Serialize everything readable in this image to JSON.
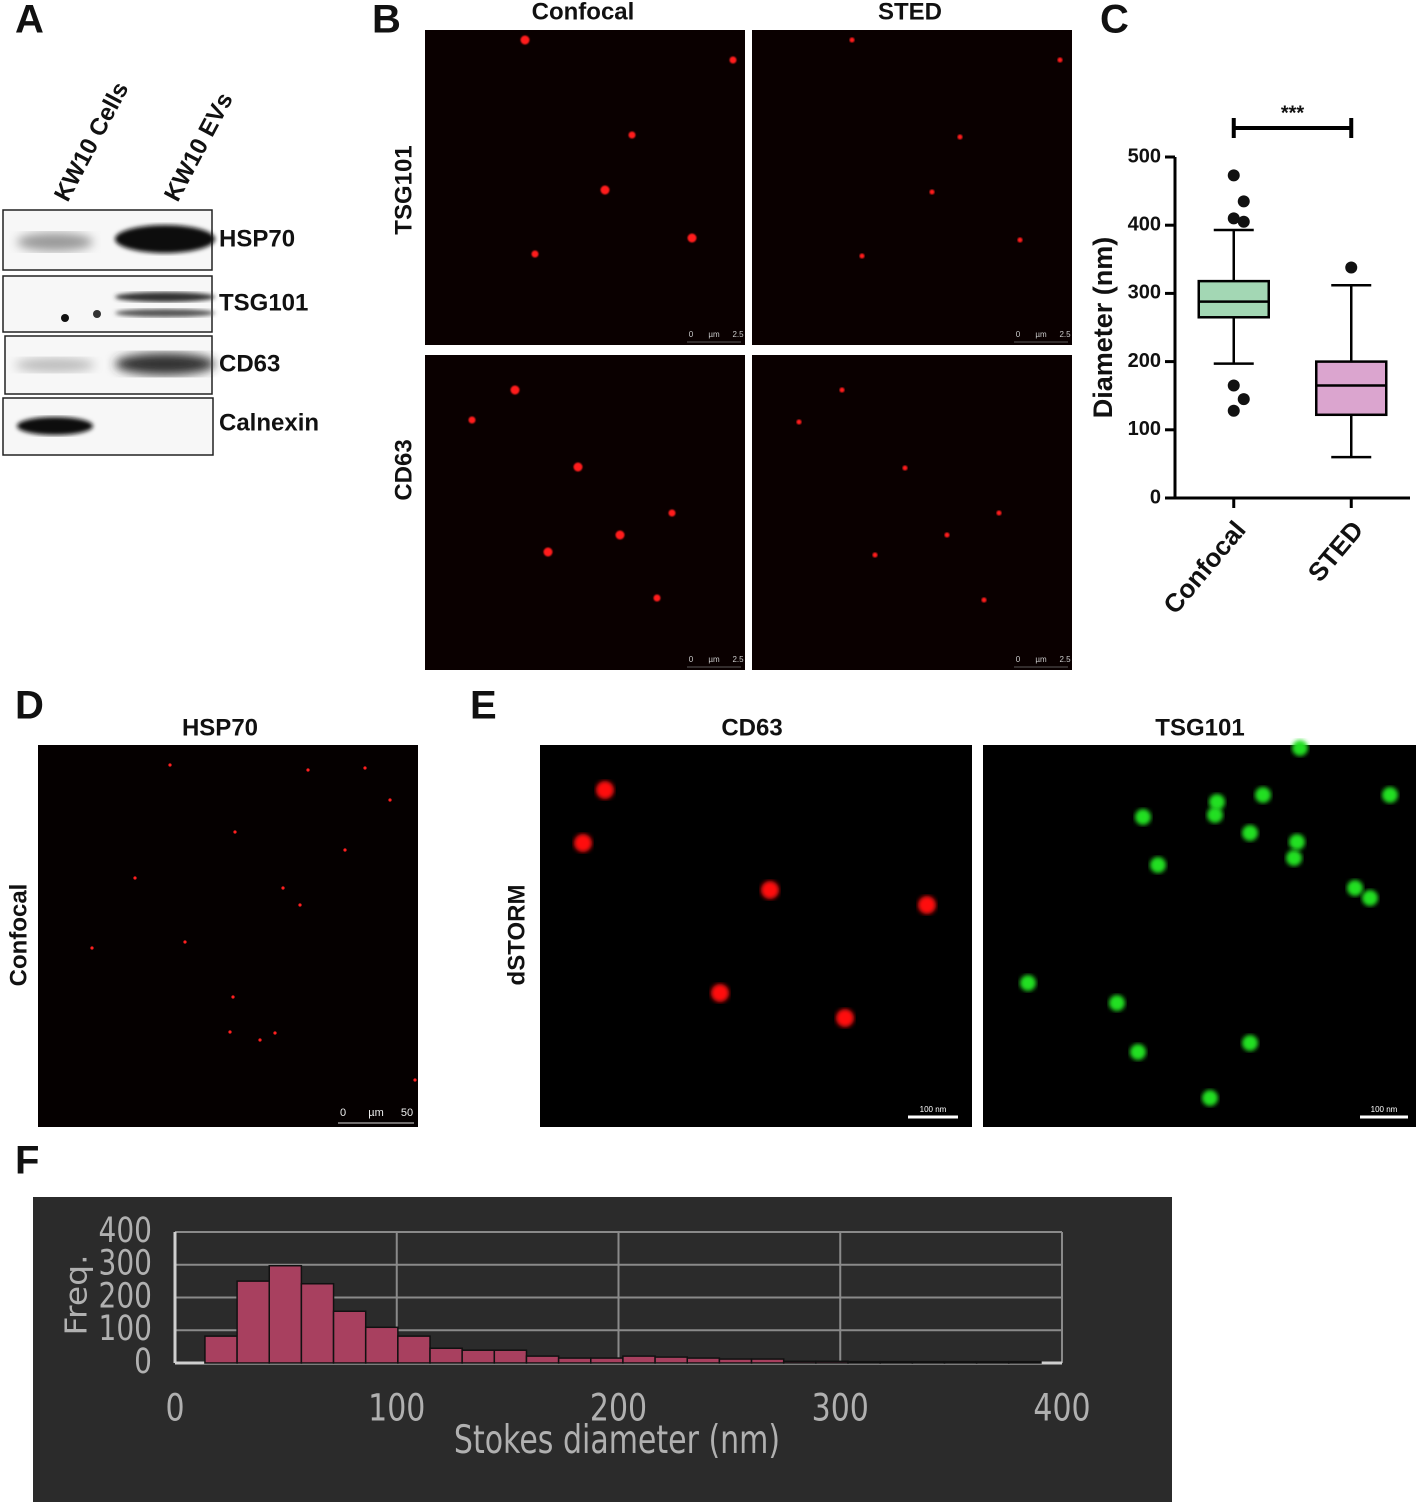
{
  "panels": {
    "a": {
      "label": "A",
      "columns": [
        "KW10 Cells",
        "KW10 EVs"
      ],
      "rows": [
        "HSP70",
        "TSG101",
        "CD63",
        "Calnexin"
      ]
    },
    "b": {
      "label": "B",
      "columns": [
        "Confocal",
        "STED"
      ],
      "rows": [
        "TSG101",
        "CD63"
      ],
      "scale_labels": [
        "0",
        "µm",
        "2.5"
      ]
    },
    "c": {
      "label": "C"
    },
    "d": {
      "label": "D",
      "title": "HSP70",
      "row": "Confocal",
      "scale_labels": [
        "0",
        "µm",
        "50"
      ]
    },
    "e": {
      "label": "E",
      "columns": [
        "CD63",
        "TSG101"
      ],
      "row": "dSTORM",
      "scale_label": "100 nm"
    },
    "f": {
      "label": "F"
    }
  },
  "chart_data": [
    {
      "type": "box",
      "ylabel": "Diameter (nm)",
      "categories": [
        "Confocal",
        "STED"
      ],
      "ylim": [
        0,
        500
      ],
      "yticks": [
        0,
        100,
        200,
        300,
        400,
        500
      ],
      "annotation": "***",
      "boxes": [
        {
          "color": "#a3d7b4",
          "whisker_low": 197,
          "q1": 265,
          "median": 288,
          "q3": 318,
          "whisker_high": 393,
          "outliers": [
            473,
            435,
            410,
            405,
            165,
            145,
            128
          ]
        },
        {
          "color": "#dba5cf",
          "whisker_low": 60,
          "q1": 122,
          "median": 165,
          "q3": 200,
          "whisker_high": 312,
          "outliers": [
            338
          ]
        }
      ]
    },
    {
      "type": "histogram",
      "ylabel": "Freq.",
      "xlabel": "Stokes diameter (nm)",
      "xlim": [
        0,
        400
      ],
      "xticks": [
        0,
        100,
        200,
        300,
        400
      ],
      "ylim": [
        0,
        400
      ],
      "yticks": [
        0,
        100,
        200,
        300,
        400
      ],
      "grid": true,
      "color": "#a8405f",
      "bins": [
        13.5,
        28,
        42.5,
        57,
        71.5,
        86,
        100.5,
        115,
        129.5,
        144,
        158.5,
        173,
        187.5,
        202,
        216.5,
        231,
        245.5,
        260,
        274.5,
        289,
        303.5,
        318,
        332.5,
        347,
        361.5,
        376,
        390.5
      ],
      "counts": [
        82,
        250,
        297,
        242,
        158,
        109,
        82,
        45,
        39,
        39,
        21,
        15,
        15,
        21,
        18,
        15,
        12,
        12,
        5,
        5,
        4,
        4,
        4,
        4,
        4,
        4
      ]
    }
  ]
}
